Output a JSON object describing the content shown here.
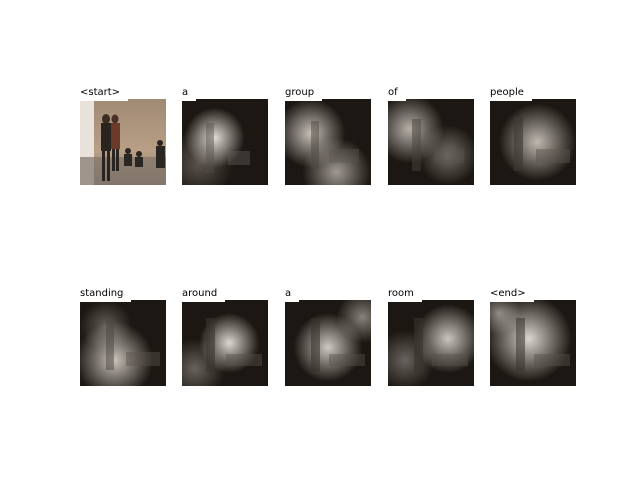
{
  "panels": [
    {
      "word": "<start>"
    },
    {
      "word": "a"
    },
    {
      "word": "group"
    },
    {
      "word": "of"
    },
    {
      "word": "people"
    },
    {
      "word": "standing"
    },
    {
      "word": "around"
    },
    {
      "word": "a"
    },
    {
      "word": "room"
    },
    {
      "word": "<end>"
    }
  ],
  "colors": {
    "background": "#ffffff",
    "photo_wall": "#b09a82",
    "photo_floor": "#8a7e72",
    "attention_dark": "#1c1712",
    "attention_bright": "#ebe6de"
  }
}
